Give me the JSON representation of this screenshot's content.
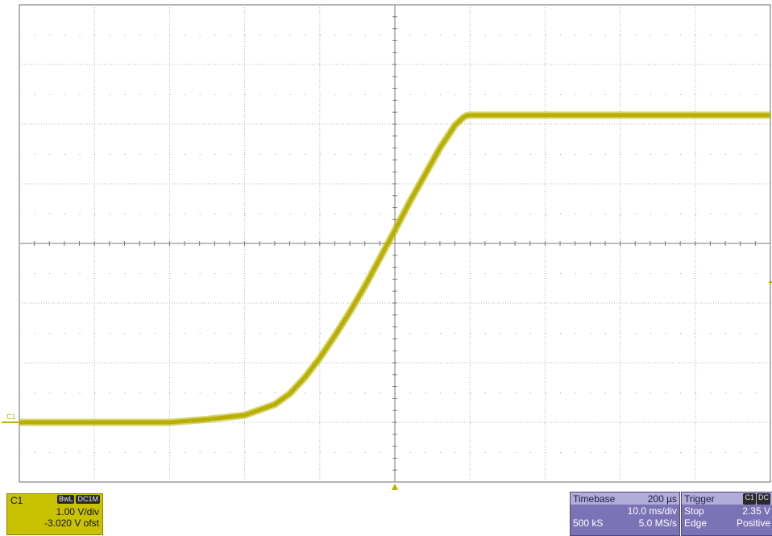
{
  "channel": {
    "name": "C1",
    "marker_label": "C1",
    "tags": [
      "BwL",
      "DC1M"
    ],
    "vdiv": "1.00 V/div",
    "offset": "-3.020 V ofst",
    "trace_color": "#b8b000"
  },
  "timebase": {
    "label": "Timebase",
    "delay": "200 µs",
    "tdiv": "10.0 ms/div",
    "samples": "500 kS",
    "rate": "5.0 MS/s"
  },
  "trigger": {
    "label": "Trigger",
    "tags": [
      "C1",
      "DC"
    ],
    "mode": "Stop",
    "level": "2.35 V",
    "type": "Edge",
    "slope": "Positive"
  },
  "chart_data": {
    "type": "line",
    "grid": true,
    "grid_divisions": [
      10,
      8
    ],
    "xlim": [
      -50,
      50
    ],
    "ylim": [
      -1,
      7
    ],
    "xlabel": "",
    "ylabel": "",
    "series": [
      {
        "x": [
          -50,
          -30,
          -25,
          -20,
          -16,
          -14,
          -12,
          -10,
          -8,
          -6,
          -4,
          -2,
          0,
          2,
          4,
          6,
          8,
          9,
          9.5,
          10,
          50
        ],
        "y": [
          0.0,
          0.0,
          0.05,
          0.12,
          0.3,
          0.48,
          0.75,
          1.08,
          1.45,
          1.85,
          2.28,
          2.75,
          3.22,
          3.7,
          4.15,
          4.6,
          4.98,
          5.1,
          5.14,
          5.15,
          5.15
        ]
      }
    ]
  }
}
